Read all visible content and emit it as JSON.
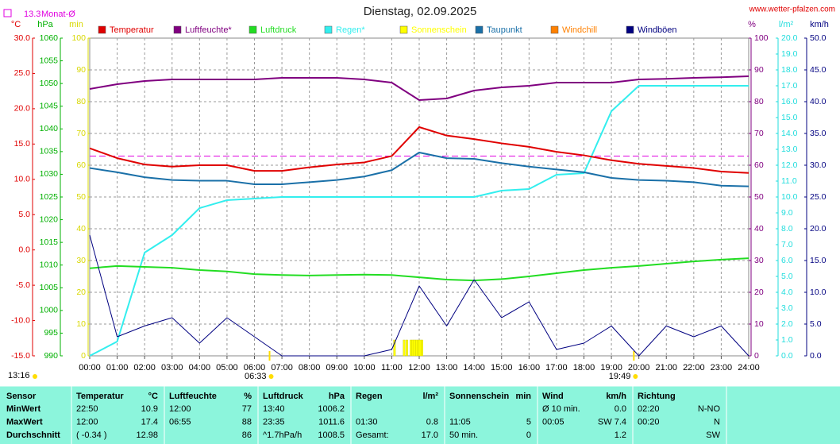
{
  "chart_data": {
    "type": "line",
    "title": "Dienstag, 02.09.2025",
    "source": "www.wetter-pfalzen.com",
    "monthly_avg": {
      "value": 13.3,
      "label": "Monat-Ø"
    },
    "time": "13:16",
    "sun": {
      "rise": "06:33",
      "set": "19:49"
    },
    "xlim": [
      0,
      24
    ],
    "xticks": [
      {
        "value": 0,
        "label": "00:00"
      },
      {
        "value": 1,
        "label": "01:00"
      },
      {
        "value": 2,
        "label": "02:00"
      },
      {
        "value": 3,
        "label": "03:00"
      },
      {
        "value": 4,
        "label": "04:00"
      },
      {
        "value": 5,
        "label": "05:00"
      },
      {
        "value": 6,
        "label": "06:00"
      },
      {
        "value": 7,
        "label": "07:00"
      },
      {
        "value": 8,
        "label": "08:00"
      },
      {
        "value": 9,
        "label": "09:00"
      },
      {
        "value": 10,
        "label": "10:00"
      },
      {
        "value": 11,
        "label": "11:00"
      },
      {
        "value": 12,
        "label": "12:00"
      },
      {
        "value": 13,
        "label": "13:00"
      },
      {
        "value": 14,
        "label": "14:00"
      },
      {
        "value": 15,
        "label": "15:00"
      },
      {
        "value": 16,
        "label": "16:00"
      },
      {
        "value": 17,
        "label": "17:00"
      },
      {
        "value": 18,
        "label": "18:00"
      },
      {
        "value": 19,
        "label": "19:00"
      },
      {
        "value": 20,
        "label": "20:00"
      },
      {
        "value": 21,
        "label": "21:00"
      },
      {
        "value": 22,
        "label": "22:00"
      },
      {
        "value": 23,
        "label": "23:00"
      },
      {
        "value": 24,
        "label": "24:00"
      }
    ],
    "grid": true,
    "axes": [
      {
        "label": "°C",
        "color": "#e00000",
        "lim": [
          -15,
          30
        ],
        "ticks": [
          {
            "value": 30,
            "label": "30.0"
          },
          {
            "value": 25,
            "label": "25.0"
          },
          {
            "value": 20,
            "label": "20.0"
          },
          {
            "value": 15,
            "label": "15.0"
          },
          {
            "value": 10,
            "label": "10.0"
          },
          {
            "value": 5,
            "label": "5.0"
          },
          {
            "value": 0,
            "label": "0.0"
          },
          {
            "value": -5,
            "label": "-5.0"
          },
          {
            "value": -10,
            "label": "-10.0"
          },
          {
            "value": -15,
            "label": "-15.0"
          }
        ]
      },
      {
        "label": "hPa",
        "color": "#00b000",
        "lim": [
          990,
          1060
        ],
        "ticks": [
          1060,
          1055,
          1050,
          1045,
          1040,
          1035,
          1030,
          1025,
          1020,
          1015,
          1010,
          1005,
          1000,
          995,
          990
        ]
      },
      {
        "label": "min",
        "color": "#d8d800",
        "lim": [
          0,
          100
        ],
        "ticks": [
          100,
          90,
          80,
          70,
          60,
          50,
          40,
          30,
          20,
          10,
          0
        ]
      },
      {
        "label": "%",
        "color": "#800080",
        "lim": [
          0,
          100
        ],
        "ticks": [
          100,
          90,
          80,
          70,
          60,
          50,
          40,
          30,
          20,
          10,
          0
        ]
      },
      {
        "label": "l/m²",
        "color": "#22dddd",
        "lim": [
          0,
          20
        ],
        "ticks": [
          {
            "value": 20,
            "label": "20.0"
          },
          {
            "value": 19,
            "label": "19.0"
          },
          {
            "value": 18,
            "label": "18.0"
          },
          {
            "value": 17,
            "label": "17.0"
          },
          {
            "value": 16,
            "label": "16.0"
          },
          {
            "value": 15,
            "label": "15.0"
          },
          {
            "value": 14,
            "label": "14.0"
          },
          {
            "value": 13,
            "label": "13.0"
          },
          {
            "value": 12,
            "label": "12.0"
          },
          {
            "value": 11,
            "label": "11.0"
          },
          {
            "value": 10,
            "label": "10.0"
          },
          {
            "value": 9,
            "label": "9.0"
          },
          {
            "value": 8,
            "label": "8.0"
          },
          {
            "value": 7,
            "label": "7.0"
          },
          {
            "value": 6,
            "label": "6.0"
          },
          {
            "value": 5,
            "label": "5.0"
          },
          {
            "value": 4,
            "label": "4.0"
          },
          {
            "value": 3,
            "label": "3.0"
          },
          {
            "value": 2,
            "label": "2.0"
          },
          {
            "value": 1,
            "label": "1.0"
          },
          {
            "value": 0,
            "label": "0.0"
          }
        ]
      },
      {
        "label": "km/h",
        "color": "#000080",
        "lim": [
          0,
          50
        ],
        "ticks": [
          {
            "value": 50,
            "label": "50.0"
          },
          {
            "value": 45,
            "label": "45.0"
          },
          {
            "value": 40,
            "label": "40.0"
          },
          {
            "value": 35,
            "label": "35.0"
          },
          {
            "value": 30,
            "label": "30.0"
          },
          {
            "value": 25,
            "label": "25.0"
          },
          {
            "value": 20,
            "label": "20.0"
          },
          {
            "value": 15,
            "label": "15.0"
          },
          {
            "value": 10,
            "label": "10.0"
          },
          {
            "value": 5,
            "label": "5.0"
          },
          {
            "value": 0,
            "label": "0.0"
          }
        ]
      }
    ],
    "x": [
      0,
      1,
      2,
      3,
      4,
      5,
      6,
      7,
      8,
      9,
      10,
      11,
      12,
      13,
      14,
      15,
      16,
      17,
      18,
      19,
      20,
      21,
      22,
      23,
      24
    ],
    "series": [
      {
        "name": "Temperatur",
        "color": "#e00000",
        "axis": 0,
        "values": [
          14.4,
          13.0,
          12.1,
          11.8,
          12.0,
          12.0,
          11.2,
          11.2,
          11.7,
          12.1,
          12.4,
          13.3,
          17.4,
          16.2,
          15.7,
          15.1,
          14.6,
          13.9,
          13.4,
          12.7,
          12.2,
          11.9,
          11.6,
          11.1,
          10.9
        ]
      },
      {
        "name": "Luftfeuchte*",
        "color": "#800080",
        "axis": 3,
        "values": [
          84,
          85.5,
          86.5,
          87,
          87,
          87,
          87,
          87.5,
          87.5,
          87.5,
          87,
          86,
          80.5,
          81,
          83.5,
          84.5,
          85,
          86,
          86,
          86,
          87,
          87.2,
          87.5,
          87.7,
          88
        ]
      },
      {
        "name": "Luftdruck",
        "color": "#22dd22",
        "axis": 1,
        "values": [
          1009.3,
          1009.8,
          1009.6,
          1009.4,
          1008.9,
          1008.6,
          1008.0,
          1007.8,
          1007.7,
          1007.8,
          1007.9,
          1007.8,
          1007.3,
          1006.8,
          1006.6,
          1006.9,
          1007.5,
          1008.2,
          1008.9,
          1009.4,
          1009.8,
          1010.3,
          1010.8,
          1011.2,
          1011.5
        ]
      },
      {
        "name": "Regen*",
        "color": "#33eeee",
        "axis": 4,
        "values": [
          0,
          0.9,
          6.5,
          7.6,
          9.3,
          9.8,
          9.9,
          10.0,
          10.0,
          10.0,
          10.0,
          10.0,
          10.0,
          10.0,
          10.0,
          10.4,
          10.5,
          11.4,
          11.5,
          15.4,
          17.0,
          17.0,
          17.0,
          17.0,
          17.0
        ]
      },
      {
        "name": "Sonnenschein",
        "color": "#ffff00",
        "axis": 2,
        "kind": "bar",
        "x": [
          11.1,
          11.45,
          11.55,
          11.7,
          11.77,
          11.83,
          11.9,
          11.97,
          12.03,
          12.1
        ],
        "values": [
          5,
          5,
          5,
          5,
          5,
          5,
          5,
          5,
          5,
          5
        ]
      },
      {
        "name": "Taupunkt",
        "color": "#1a70a8",
        "axis": 0,
        "values": [
          11.6,
          11.0,
          10.3,
          9.9,
          9.8,
          9.8,
          9.3,
          9.3,
          9.6,
          9.9,
          10.4,
          11.3,
          13.8,
          13.0,
          12.9,
          12.3,
          11.8,
          11.4,
          11.0,
          10.2,
          9.9,
          9.8,
          9.6,
          9.1,
          9.0
        ]
      },
      {
        "name": "Windchill",
        "color": "#ff8000",
        "axis": 0
      },
      {
        "name": "Windböen",
        "color": "#000080",
        "axis": 5,
        "thin": true,
        "values": [
          19,
          3,
          4.7,
          6,
          2,
          6,
          3,
          0,
          0,
          0,
          0,
          1,
          11,
          4.7,
          12,
          6,
          8.5,
          1,
          2,
          4.7,
          0,
          4.7,
          3,
          4.7,
          0
        ]
      }
    ]
  },
  "table": {
    "header": [
      "Sensor",
      "Temperatur",
      "°C",
      "Luftfeuchte",
      "%",
      "Luftdruck",
      "hPa",
      "Regen",
      "l/m²",
      "Sonnenschein",
      "min",
      "Wind",
      "km/h",
      "Richtung",
      null
    ],
    "rows": [
      [
        "MinWert",
        "22:50",
        "10.9",
        "12:00",
        "77",
        "13:40",
        "1006.2",
        null,
        null,
        null,
        null,
        "Ø 10 min.",
        "0.0",
        "02:20",
        "N-NO"
      ],
      [
        "MaxWert",
        "12:00",
        "17.4",
        "06:55",
        "88",
        "23:35",
        "1011.6",
        "01:30",
        "0.8",
        "11:05",
        "5",
        "00:05",
        "SW 7.4",
        "00:20",
        "N"
      ],
      [
        "Durchschnitt",
        "( -0.34 )",
        "12.98",
        null,
        "86",
        "^1.7hPa/h",
        "1008.5",
        "Gesamt:",
        "17.0",
        "50 min.",
        "0",
        null,
        "1.2",
        null,
        "SW"
      ]
    ]
  }
}
